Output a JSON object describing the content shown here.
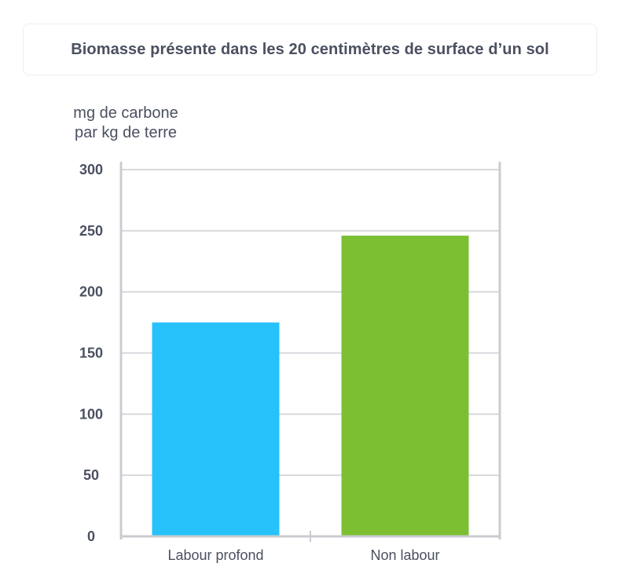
{
  "chart_data": {
    "type": "bar",
    "title": "Biomasse présente dans les 20 centimètres de surface d’un sol",
    "ylabel_lines": [
      "mg de carbone",
      "par kg de terre"
    ],
    "xlabel": "",
    "categories": [
      "Labour profond",
      "Non labour"
    ],
    "values": [
      175,
      246
    ],
    "colors": [
      "#27c1fc",
      "#7cbf33"
    ],
    "ylim": [
      0,
      300
    ],
    "yticks": [
      0,
      50,
      100,
      150,
      200,
      250,
      300
    ],
    "ytick_labels": [
      "0",
      "50",
      "100",
      "150",
      "200",
      "250",
      "300"
    ],
    "grid": true,
    "legend": "none"
  }
}
